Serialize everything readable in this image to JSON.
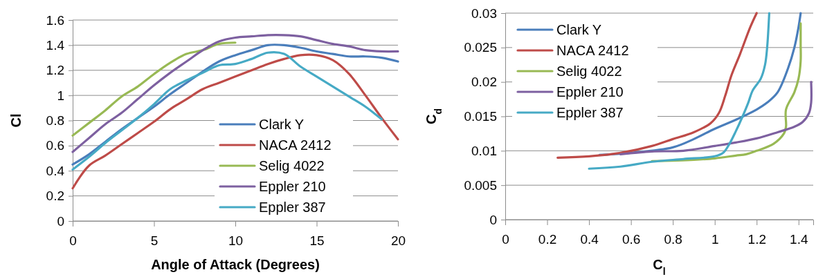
{
  "chart_data": [
    {
      "type": "line",
      "xlabel": "Angle of Attack (Degrees)",
      "ylabel": "Cl",
      "x": [
        0,
        1,
        2,
        3,
        4,
        5,
        6,
        7,
        8,
        9,
        10,
        11,
        12,
        13,
        14,
        15,
        16,
        17,
        18,
        19,
        20
      ],
      "xlim": [
        0,
        20
      ],
      "xticks": [
        0,
        5,
        10,
        15,
        20
      ],
      "ylim": [
        0,
        1.6
      ],
      "yticks": [
        0,
        0.2,
        0.4,
        0.6,
        0.8,
        1,
        1.2,
        1.4,
        1.6
      ],
      "grid": "y",
      "legend": "bottom right",
      "line_style": "solid",
      "series": [
        {
          "name": "Clark Y",
          "color": "#4a7ebb",
          "values": [
            0.45,
            0.53,
            0.63,
            0.73,
            0.82,
            0.91,
            1.01,
            1.1,
            1.19,
            1.27,
            1.32,
            1.36,
            1.4,
            1.4,
            1.38,
            1.35,
            1.33,
            1.31,
            1.31,
            1.3,
            1.27
          ]
        },
        {
          "name": "NACA 2412",
          "color": "#be4b48",
          "values": [
            0.26,
            0.44,
            0.52,
            0.61,
            0.7,
            0.79,
            0.89,
            0.97,
            1.05,
            1.1,
            1.15,
            1.2,
            1.25,
            1.29,
            1.32,
            1.32,
            1.28,
            1.17,
            1.0,
            0.82,
            0.65
          ]
        },
        {
          "name": "Selig 4022",
          "color": "#98b954",
          "values": [
            0.68,
            0.78,
            0.88,
            0.99,
            1.07,
            1.17,
            1.26,
            1.33,
            1.36,
            1.41,
            1.42,
            null,
            null,
            null,
            null,
            null,
            null,
            null,
            null,
            null,
            null
          ]
        },
        {
          "name": "Eppler 210",
          "color": "#7d60a0",
          "values": [
            0.55,
            0.66,
            0.77,
            0.86,
            0.97,
            1.08,
            1.18,
            1.27,
            1.36,
            1.43,
            1.46,
            1.47,
            1.48,
            1.48,
            1.47,
            1.44,
            1.41,
            1.39,
            1.36,
            1.35,
            1.35
          ]
        },
        {
          "name": "Eppler 387",
          "color": "#46aac5",
          "values": [
            0.41,
            0.51,
            0.62,
            0.72,
            0.82,
            0.93,
            1.05,
            1.12,
            1.18,
            1.24,
            1.25,
            1.29,
            1.34,
            1.33,
            1.23,
            1.15,
            1.07,
            0.99,
            0.91,
            0.81,
            null
          ]
        }
      ]
    },
    {
      "type": "line",
      "xlabel": "C$_{l}$",
      "ylabel": "C$_{d}$",
      "xlim": [
        0,
        1.47
      ],
      "xticks": [
        0,
        0.2,
        0.4,
        0.6,
        0.8,
        1,
        1.2,
        1.4
      ],
      "ylim": [
        0,
        0.03
      ],
      "yticks": [
        0,
        0.005,
        0.01,
        0.015,
        0.02,
        0.025,
        0.03
      ],
      "grid": "y",
      "legend": "top left",
      "line_style": "solid",
      "series": [
        {
          "name": "Clark Y",
          "color": "#4a7ebb",
          "x": [
            0.45,
            0.6,
            0.8,
            0.9,
            1.0,
            1.1,
            1.2,
            1.25,
            1.3,
            1.35,
            1.38,
            1.4,
            1.41
          ],
          "values": [
            0.0094,
            0.0097,
            0.0105,
            0.0117,
            0.0132,
            0.0145,
            0.016,
            0.017,
            0.0185,
            0.022,
            0.025,
            0.028,
            0.03
          ]
        },
        {
          "name": "NACA 2412",
          "color": "#be4b48",
          "x": [
            0.25,
            0.4,
            0.55,
            0.7,
            0.8,
            0.9,
            0.98,
            1.02,
            1.05,
            1.08,
            1.12,
            1.17,
            1.2
          ],
          "values": [
            0.009,
            0.0092,
            0.0097,
            0.0107,
            0.0117,
            0.0127,
            0.014,
            0.0155,
            0.018,
            0.021,
            0.024,
            0.028,
            0.03
          ]
        },
        {
          "name": "Selig 4022",
          "color": "#98b954",
          "x": [
            0.7,
            0.9,
            1.0,
            1.1,
            1.15,
            1.2,
            1.28,
            1.33,
            1.34,
            1.34,
            1.38,
            1.4,
            1.41,
            1.41,
            1.41
          ],
          "values": [
            0.0085,
            0.0087,
            0.0089,
            0.0093,
            0.0095,
            0.01,
            0.011,
            0.0125,
            0.0135,
            0.016,
            0.0185,
            0.0205,
            0.023,
            0.0255,
            0.0285
          ]
        },
        {
          "name": "Eppler 210",
          "color": "#7d60a0",
          "x": [
            0.55,
            0.7,
            0.85,
            1.0,
            1.1,
            1.2,
            1.3,
            1.38,
            1.42,
            1.45,
            1.46,
            1.46
          ],
          "values": [
            0.0095,
            0.0099,
            0.01,
            0.0107,
            0.0112,
            0.0118,
            0.0127,
            0.0135,
            0.0142,
            0.0155,
            0.017,
            0.02
          ]
        },
        {
          "name": "Eppler 387",
          "color": "#46aac5",
          "x": [
            0.4,
            0.55,
            0.7,
            0.85,
            1.0,
            1.04,
            1.07,
            1.1,
            1.13,
            1.16,
            1.18,
            1.22,
            1.24,
            1.25,
            1.26
          ],
          "values": [
            0.0074,
            0.0077,
            0.0084,
            0.0088,
            0.0092,
            0.0097,
            0.011,
            0.0128,
            0.0148,
            0.017,
            0.0187,
            0.0205,
            0.0225,
            0.025,
            0.03
          ]
        }
      ]
    }
  ]
}
